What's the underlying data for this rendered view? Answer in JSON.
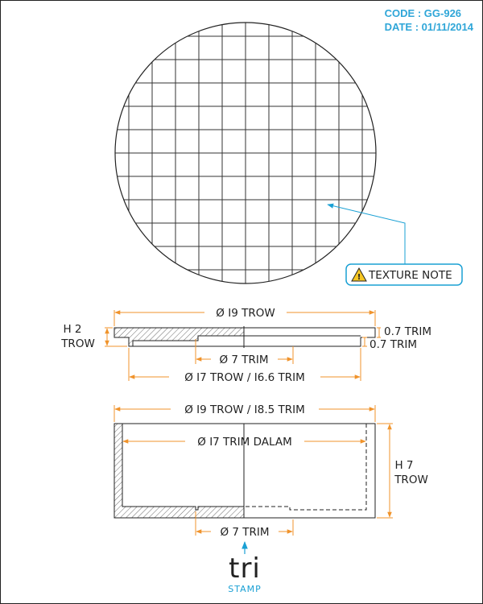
{
  "header": {
    "code": "CODE : GG-926",
    "date": "DATE : 01/11/2014"
  },
  "texture": {
    "note": "TEXTURE NOTE"
  },
  "lid": {
    "diameter": "Ø I9 TROW",
    "height": [
      "H 2",
      "TROW"
    ],
    "thickness_top": "0.7 TRIM",
    "thickness_bottom": "0.7 TRIM",
    "inner_diameter": "Ø 7 TRIM",
    "step_diameter": "Ø I7 TROW / I6.6 TRIM"
  },
  "base": {
    "outer_diameter": "Ø I9 TROW / I8.5 TRIM",
    "inner_diameter": "Ø I7 TRIM DALAM",
    "height": [
      "H 7",
      "TROW"
    ],
    "bottom_diameter": "Ø 7 TRIM"
  },
  "logo": {
    "text": "tri",
    "label": "STAMP"
  },
  "colors": {
    "dimension": "#f0932b",
    "accent": "#2fa6d8",
    "warning": "#f6c623",
    "line": "#222222"
  }
}
